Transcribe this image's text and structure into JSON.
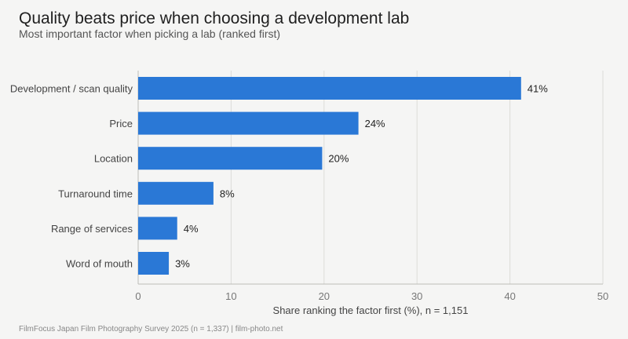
{
  "header": {
    "title": "Quality beats price when choosing a development lab",
    "subtitle": "Most important factor when picking a lab (ranked first)"
  },
  "footer": {
    "source": "FilmFocus Japan Film Photography Survey 2025 (n = 1,337)  |  film-photo.net"
  },
  "colors": {
    "bar": "#2a78d6",
    "grid": "#dcdcd8",
    "axis": "#bdbdb8",
    "background": "#f5f5f4"
  },
  "chart_data": {
    "type": "bar",
    "orientation": "horizontal",
    "categories": [
      "Development / scan quality",
      "Price",
      "Location",
      "Turnaround time",
      "Range of services",
      "Word of mouth"
    ],
    "values": [
      41.2,
      23.7,
      19.8,
      8.1,
      4.2,
      3.3
    ],
    "value_labels": [
      "41%",
      "24%",
      "20%",
      "8%",
      "4%",
      "3%"
    ],
    "xlabel": "Share ranking the factor first (%), n = 1,151",
    "xlim": [
      0,
      50
    ],
    "xticks": [
      0,
      10,
      20,
      30,
      40,
      50
    ],
    "xtick_labels": [
      "0",
      "10",
      "20",
      "30",
      "40",
      "50"
    ],
    "grid": "vertical"
  }
}
